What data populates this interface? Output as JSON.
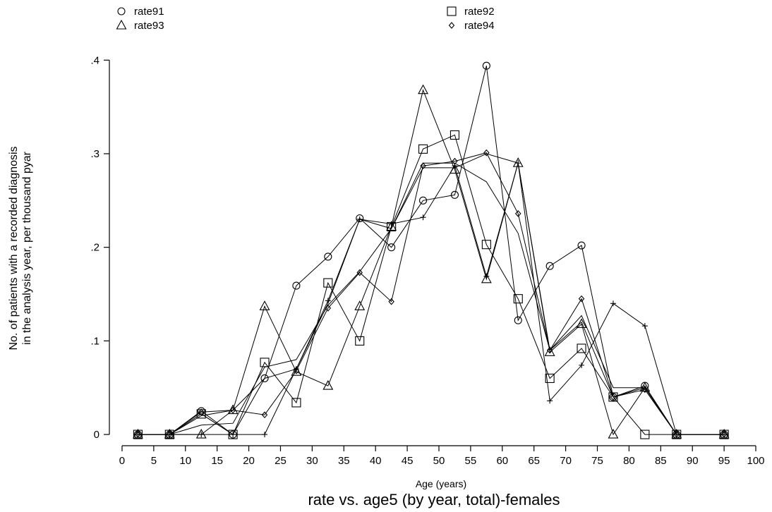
{
  "chart_data": {
    "type": "line",
    "title": "rate vs. age5 (by year, total)-females",
    "xlabel": "Age (years)",
    "ylabel_lines": [
      "No. of patients with a recorded diagnosis",
      "in the analysis year, per thousand pyar"
    ],
    "xlim": [
      -2,
      101
    ],
    "ylim": [
      -0.012,
      0.41
    ],
    "xticks": [
      0,
      5,
      10,
      15,
      20,
      25,
      30,
      35,
      40,
      45,
      50,
      55,
      60,
      65,
      70,
      75,
      80,
      85,
      90,
      95,
      100
    ],
    "xtick_labels": [
      "0",
      "5",
      "10",
      "15",
      "20",
      "25",
      "30",
      "35",
      "40",
      "45",
      "50",
      "55",
      "60",
      "65",
      "70",
      "75",
      "80",
      "85",
      "90",
      "95",
      "100"
    ],
    "yticks": [
      0,
      0.1,
      0.2,
      0.3,
      0.4
    ],
    "ytick_labels": [
      "0",
      ".1",
      ".2",
      ".3",
      ".4"
    ],
    "grid": false,
    "legend_position": "top",
    "series": [
      {
        "name": "rate91",
        "marker": "circle",
        "x": [
          2.5,
          7.5,
          12.5,
          17.5,
          22.5,
          27.5,
          32.5,
          37.5,
          42.5,
          47.5,
          52.5,
          57.5,
          62.5,
          67.5,
          72.5,
          77.5,
          82.5,
          87.5,
          95
        ],
        "y": [
          0,
          0,
          0.025,
          0,
          0.06,
          0.159,
          0.19,
          0.231,
          0.2,
          0.25,
          0.256,
          0.394,
          0.122,
          0.18,
          0.202,
          0.04,
          0.052,
          0,
          0
        ]
      },
      {
        "name": "rate92",
        "marker": "square",
        "x": [
          2.5,
          7.5,
          12.5,
          17.5,
          22.5,
          27.5,
          32.5,
          37.5,
          42.5,
          47.5,
          52.5,
          57.5,
          62.5,
          67.5,
          72.5,
          77.5,
          82.5,
          87.5,
          95
        ],
        "y": [
          0,
          0,
          0.022,
          0,
          0.077,
          0.034,
          0.162,
          0.1,
          0.222,
          0.305,
          0.32,
          0.203,
          0.145,
          0.06,
          0.092,
          0.04,
          0,
          0,
          0
        ]
      },
      {
        "name": "rate93",
        "marker": "triangle",
        "x": [
          2.5,
          7.5,
          12.5,
          17.5,
          22.5,
          27.5,
          32.5,
          37.5,
          42.5,
          47.5,
          52.5,
          57.5,
          62.5,
          67.5,
          72.5,
          77.5,
          82.5,
          87.5,
          95
        ],
        "y": [
          0,
          0,
          0,
          0.026,
          0.137,
          0.067,
          0.052,
          0.137,
          0.222,
          0.368,
          0.283,
          0.166,
          0.29,
          0.088,
          0.118,
          0,
          0.05,
          0,
          0
        ]
      },
      {
        "name": "rate94",
        "marker": "diamond",
        "x": [
          2.5,
          7.5,
          12.5,
          17.5,
          22.5,
          27.5,
          32.5,
          37.5,
          42.5,
          47.5,
          52.5,
          57.5,
          62.5,
          67.5,
          72.5,
          77.5,
          82.5,
          87.5,
          95
        ],
        "y": [
          0,
          0,
          0.024,
          0.026,
          0.021,
          0.068,
          0.135,
          0.173,
          0.142,
          0.287,
          0.292,
          0.301,
          0.236,
          0.09,
          0.145,
          0.04,
          0.048,
          0,
          0
        ]
      },
      {
        "marker": "plus",
        "x": [
          2.5,
          7.5,
          12.5,
          17.5,
          22.5,
          27.5,
          32.5,
          37.5,
          42.5,
          47.5,
          52.5,
          57.5,
          62.5,
          67.5,
          72.5,
          77.5,
          82.5,
          87.5,
          95
        ],
        "y": [
          0,
          0,
          0,
          0,
          0,
          0.07,
          0.143,
          0.23,
          0.225,
          0.232,
          0.287,
          0.169,
          0.29,
          0.036,
          0.074,
          0.14,
          0.116,
          0,
          0
        ]
      },
      {
        "marker": "none",
        "x": [
          2.5,
          7.5,
          12.5,
          17.5,
          22.5,
          27.5,
          32.5,
          37.5,
          42.5,
          47.5,
          52.5,
          57.5,
          62.5,
          67.5,
          72.5,
          77.5,
          82.5,
          87.5,
          95
        ],
        "y": [
          0,
          0,
          0.01,
          0.012,
          0.072,
          0.08,
          0.138,
          0.174,
          0.22,
          0.29,
          0.29,
          0.27,
          0.215,
          0.09,
          0.127,
          0.05,
          0.05,
          0,
          0
        ]
      },
      {
        "marker": "none",
        "x": [
          2.5,
          7.5,
          12.5,
          17.5,
          22.5,
          27.5,
          32.5,
          37.5,
          42.5,
          47.5,
          52.5,
          57.5,
          62.5,
          67.5,
          72.5,
          77.5,
          82.5,
          87.5,
          95
        ],
        "y": [
          0,
          0,
          0.02,
          0.026,
          0.06,
          0.07,
          0.14,
          0.23,
          0.22,
          0.285,
          0.285,
          0.3,
          0.29,
          0.09,
          0.12,
          0.04,
          0.05,
          0,
          0
        ]
      }
    ]
  }
}
